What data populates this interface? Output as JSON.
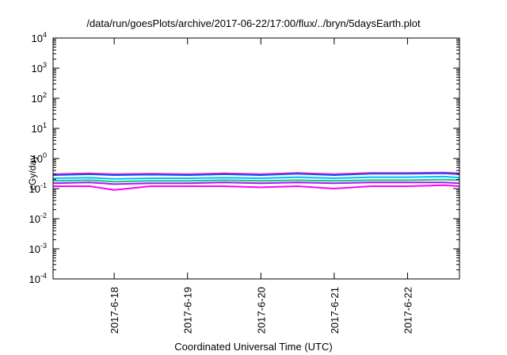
{
  "chart_data": {
    "type": "line",
    "title": "/data/run/goesPlots/archive/2017-06-22/17:00/flux/../bryn/5daysEarth.plot",
    "xlabel": "Coordinated Universal Time (UTC)",
    "ylabel": "cGy/day",
    "yscale": "log",
    "ylim": [
      0.0001,
      10000
    ],
    "xlim": [
      "2017-06-17 04:00",
      "2017-06-22 17:00"
    ],
    "grid": false,
    "legend": "none",
    "x_ticks": [
      "2017-6-18",
      "2017-6-19",
      "2017-6-20",
      "2017-6-21",
      "2017-6-22"
    ],
    "y_ticks": [
      {
        "base": "10",
        "exp": "-4"
      },
      {
        "base": "10",
        "exp": "-3"
      },
      {
        "base": "10",
        "exp": "-2"
      },
      {
        "base": "10",
        "exp": "-1"
      },
      {
        "base": "10",
        "exp": "0"
      },
      {
        "base": "10",
        "exp": "1"
      },
      {
        "base": "10",
        "exp": "2"
      },
      {
        "base": "10",
        "exp": "3"
      },
      {
        "base": "10",
        "exp": "4"
      }
    ],
    "x": [
      "2017-06-17 04:00",
      "2017-06-17 16:00",
      "2017-06-18 00:00",
      "2017-06-18 12:00",
      "2017-06-19 00:00",
      "2017-06-19 12:00",
      "2017-06-20 00:00",
      "2017-06-20 12:00",
      "2017-06-21 00:00",
      "2017-06-21 12:00",
      "2017-06-22 00:00",
      "2017-06-22 12:00",
      "2017-06-22 17:00"
    ],
    "series": [
      {
        "color": "#ff1493",
        "values": [
          0.3,
          0.32,
          0.3,
          0.31,
          0.3,
          0.32,
          0.3,
          0.33,
          0.3,
          0.33,
          0.33,
          0.34,
          0.32
        ]
      },
      {
        "color": "#1e50ff",
        "values": [
          0.28,
          0.3,
          0.28,
          0.29,
          0.28,
          0.3,
          0.28,
          0.31,
          0.28,
          0.31,
          0.31,
          0.32,
          0.3
        ]
      },
      {
        "color": "#00c0ff",
        "values": [
          0.22,
          0.23,
          0.21,
          0.22,
          0.22,
          0.23,
          0.22,
          0.24,
          0.22,
          0.24,
          0.24,
          0.25,
          0.23
        ]
      },
      {
        "color": "#20c080",
        "values": [
          0.18,
          0.19,
          0.17,
          0.18,
          0.18,
          0.19,
          0.18,
          0.19,
          0.18,
          0.19,
          0.19,
          0.2,
          0.19
        ]
      },
      {
        "color": "#a020f0",
        "values": [
          0.15,
          0.16,
          0.14,
          0.15,
          0.15,
          0.16,
          0.15,
          0.16,
          0.15,
          0.16,
          0.16,
          0.16,
          0.15
        ]
      },
      {
        "color": "#ff00ff",
        "values": [
          0.12,
          0.12,
          0.09,
          0.12,
          0.12,
          0.12,
          0.11,
          0.12,
          0.1,
          0.12,
          0.12,
          0.13,
          0.12
        ]
      }
    ]
  }
}
